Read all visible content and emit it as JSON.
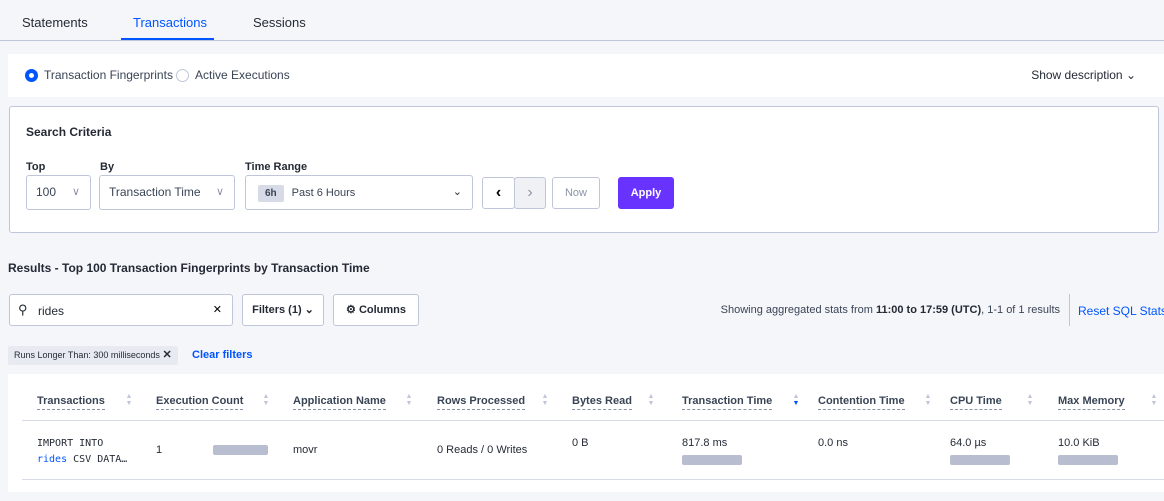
{
  "tabs": [
    {
      "label": "Statements"
    },
    {
      "label": "Transactions",
      "active": true
    },
    {
      "label": "Sessions"
    }
  ],
  "view_options": {
    "fingerprints": "Transaction Fingerprints",
    "active": "Active Executions",
    "selected": "fingerprints",
    "show_description": "Show description"
  },
  "search_criteria": {
    "title": "Search Criteria",
    "top_label": "Top",
    "top_value": "100",
    "by_label": "By",
    "by_value": "Transaction Time",
    "time_label": "Time Range",
    "time_badge": "6h",
    "time_value": "Past 6 Hours",
    "now": "Now",
    "apply": "Apply"
  },
  "results": {
    "title": "Results - Top 100 Transaction Fingerprints by Transaction Time",
    "search_value": "rides",
    "filters": "Filters (1)",
    "columns": "Columns",
    "summary_prefix": "Showing aggregated stats from ",
    "summary_range": "11:00 to 17:59 (UTC)",
    "summary_suffix": ", 1-1 of 1 results",
    "reset": "Reset SQL Stats",
    "filter_chip": "Runs Longer Than: 300 milliseconds",
    "clear": "Clear filters"
  },
  "table": {
    "headers": [
      "Transactions",
      "Execution Count",
      "Application Name",
      "Rows Processed",
      "Bytes Read",
      "Transaction Time",
      "Contention Time",
      "CPU Time",
      "Max Memory"
    ],
    "sorted_column": "Transaction Time",
    "sort_direction": "descending",
    "rows": [
      {
        "tx_line1": "IMPORT INTO",
        "tx_keyword": "rides",
        "tx_rest": " CSV DATA…",
        "execution_count": "1",
        "application": "movr",
        "rows_processed": "0 Reads / 0 Writes",
        "bytes_read": "0 B",
        "transaction_time": "817.8 ms",
        "contention_time": "0.0 ns",
        "cpu_time": "64.0 µs",
        "max_memory": "10.0 KiB"
      }
    ]
  },
  "colors": {
    "accent": "#0055ff",
    "apply": "#6933ff",
    "bar": "#b8bdd0"
  }
}
